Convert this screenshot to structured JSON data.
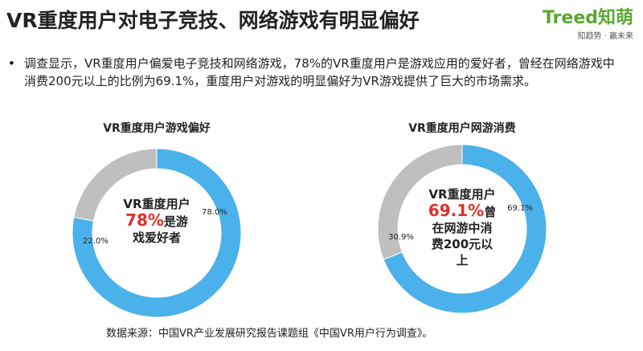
{
  "title": "VR重度用户对电子竞技、网络游戏有明显偏好",
  "logo": {
    "brand": "Treed知萌",
    "tagline": "知趋势 · 赢未来"
  },
  "bullet": "调查显示，VR重度用户偏爱电子竞技和网络游戏，78%的VR重度用户是游戏应用的爱好者，曾经在网络游戏中消费200元以上的比例为69.1%，重度用户对游戏的明显偏好为VR游戏提供了巨大的市场需求。",
  "source": "数据来源：中国VR产业发展研究报告课题组《中国VR用户行为调查》。",
  "chart_data": [
    {
      "type": "donut",
      "title": "VR重度用户游戏偏好",
      "categories": [
        null,
        null
      ],
      "values": [
        78.0,
        22.0
      ],
      "value_labels": [
        "78.0%",
        "22.0%"
      ],
      "colors": [
        "#4bb1ea",
        "#bfbfbf"
      ],
      "center_label": {
        "lead": "VR重度用户",
        "highlight": "78%",
        "rest": "是游戏爱好者"
      }
    },
    {
      "type": "donut",
      "title": "VR重度用户网游消费",
      "categories": [
        null,
        null
      ],
      "values": [
        69.1,
        30.9
      ],
      "value_labels": [
        "69.1%",
        "30.9%"
      ],
      "colors": [
        "#4bb1ea",
        "#bfbfbf"
      ],
      "center_label": {
        "lead": "VR重度用户",
        "highlight": "69.1%",
        "rest": "曾在网游中消费200元以上"
      }
    }
  ]
}
